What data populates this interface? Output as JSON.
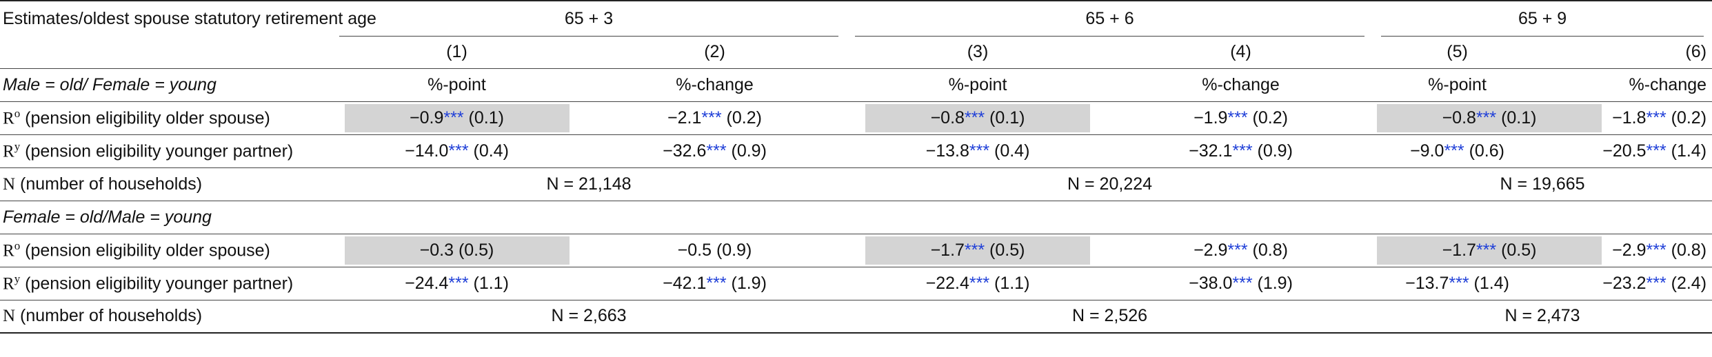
{
  "header": {
    "row_label": "Estimates/oldest spouse statutory retirement age",
    "groups": [
      "65 + 3",
      "65 + 6",
      "65 + 9"
    ],
    "col_numbers": [
      "(1)",
      "(2)",
      "(3)",
      "(4)",
      "(5)",
      "(6)"
    ]
  },
  "panel_male": {
    "title": "Male = old/ Female = young",
    "col_types": [
      "%-point",
      "%-change",
      "%-point",
      "%-change",
      "%-point",
      "%-change"
    ],
    "rows": [
      {
        "symbol": "R",
        "sup": "o",
        "label": " (pension eligibility older spouse)",
        "cells": [
          {
            "value": "−0.9",
            "stars": "***",
            "se": " (0.1)",
            "shaded": true
          },
          {
            "value": "−2.1",
            "stars": "***",
            "se": " (0.2)",
            "shaded": false
          },
          {
            "value": "−0.8",
            "stars": "***",
            "se": " (0.1)",
            "shaded": true
          },
          {
            "value": "−1.9",
            "stars": "***",
            "se": " (0.2)",
            "shaded": false
          },
          {
            "value": "−0.8",
            "stars": "***",
            "se": " (0.1)",
            "shaded": true
          },
          {
            "value": "−1.8",
            "stars": "***",
            "se": " (0.2)",
            "shaded": false
          }
        ]
      },
      {
        "symbol": "R",
        "sup": "y",
        "label": " (pension eligibility younger partner)",
        "cells": [
          {
            "value": "−14.0",
            "stars": "***",
            "se": " (0.4)",
            "shaded": false
          },
          {
            "value": "−32.6",
            "stars": "***",
            "se": " (0.9)",
            "shaded": false
          },
          {
            "value": "−13.8",
            "stars": "***",
            "se": " (0.4)",
            "shaded": false
          },
          {
            "value": "−32.1",
            "stars": "***",
            "se": " (0.9)",
            "shaded": false
          },
          {
            "value": "−9.0",
            "stars": "***",
            "se": " (0.6)",
            "shaded": false
          },
          {
            "value": "−20.5",
            "stars": "***",
            "se": " (1.4)",
            "shaded": false
          }
        ]
      }
    ],
    "n_row": {
      "symbol": "N",
      "label": " (number of households)",
      "values": [
        "N = 21,148",
        "N = 20,224",
        "N = 19,665"
      ]
    }
  },
  "panel_female": {
    "title": "Female = old/Male = young",
    "rows": [
      {
        "symbol": "R",
        "sup": "o",
        "label": " (pension eligibility older spouse)",
        "cells": [
          {
            "value": "−0.3",
            "stars": "",
            "se": " (0.5)",
            "shaded": true
          },
          {
            "value": "−0.5",
            "stars": "",
            "se": " (0.9)",
            "shaded": false
          },
          {
            "value": "−1.7",
            "stars": "***",
            "se": " (0.5)",
            "shaded": true
          },
          {
            "value": "−2.9",
            "stars": "***",
            "se": " (0.8)",
            "shaded": false
          },
          {
            "value": "−1.7",
            "stars": "***",
            "se": " (0.5)",
            "shaded": true
          },
          {
            "value": "−2.9",
            "stars": "***",
            "se": " (0.8)",
            "shaded": false
          }
        ]
      },
      {
        "symbol": "R",
        "sup": "y",
        "label": " (pension eligibility younger partner)",
        "cells": [
          {
            "value": "−24.4",
            "stars": "***",
            "se": " (1.1)",
            "shaded": false
          },
          {
            "value": "−42.1",
            "stars": "***",
            "se": " (1.9)",
            "shaded": false
          },
          {
            "value": "−22.4",
            "stars": "***",
            "se": " (1.1)",
            "shaded": false
          },
          {
            "value": "−38.0",
            "stars": "***",
            "se": " (1.9)",
            "shaded": false
          },
          {
            "value": "−13.7",
            "stars": "***",
            "se": " (1.4)",
            "shaded": false
          },
          {
            "value": "−23.2",
            "stars": "***",
            "se": " (2.4)",
            "shaded": false
          }
        ]
      }
    ],
    "n_row": {
      "symbol": "N",
      "label": " (number of households)",
      "values": [
        "N = 2,663",
        "N = 2,526",
        "N = 2,473"
      ]
    }
  },
  "colors": {
    "stars": "#1f3fd8",
    "shade": "#d4d4d4",
    "rule": "#222222"
  }
}
